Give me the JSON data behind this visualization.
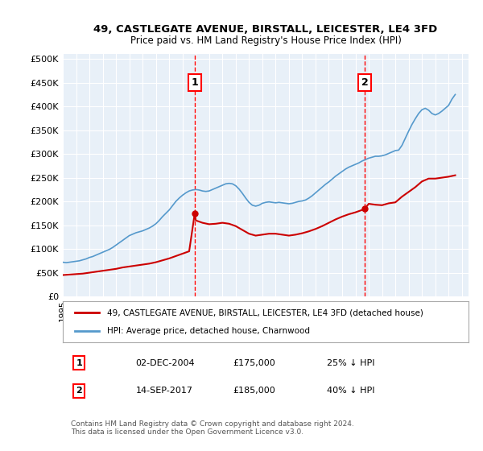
{
  "title": "49, CASTLEGATE AVENUE, BIRSTALL, LEICESTER, LE4 3FD",
  "subtitle": "Price paid vs. HM Land Registry's House Price Index (HPI)",
  "ylabel_ticks": [
    "£0",
    "£50K",
    "£100K",
    "£150K",
    "£200K",
    "£250K",
    "£300K",
    "£350K",
    "£400K",
    "£450K",
    "£500K"
  ],
  "ytick_values": [
    0,
    50000,
    100000,
    150000,
    200000,
    250000,
    300000,
    350000,
    400000,
    450000,
    500000
  ],
  "ylim": [
    0,
    510000
  ],
  "xlim_start": 1995.0,
  "xlim_end": 2025.5,
  "background_color": "#dde8f0",
  "plot_background": "#e8f0f8",
  "red_line_color": "#cc0000",
  "blue_line_color": "#5599cc",
  "marker1_date": 2004.92,
  "marker1_label": "1",
  "marker1_price": 175000,
  "marker2_date": 2017.71,
  "marker2_label": "2",
  "marker2_price": 185000,
  "legend_line1": "49, CASTLEGATE AVENUE, BIRSTALL, LEICESTER, LE4 3FD (detached house)",
  "legend_line2": "HPI: Average price, detached house, Charnwood",
  "table_row1": [
    "1",
    "02-DEC-2004",
    "£175,000",
    "25% ↓ HPI"
  ],
  "table_row2": [
    "2",
    "14-SEP-2017",
    "£185,000",
    "40% ↓ HPI"
  ],
  "footer": "Contains HM Land Registry data © Crown copyright and database right 2024.\nThis data is licensed under the Open Government Licence v3.0.",
  "hpi_x": [
    1995.0,
    1995.25,
    1995.5,
    1995.75,
    1996.0,
    1996.25,
    1996.5,
    1996.75,
    1997.0,
    1997.25,
    1997.5,
    1997.75,
    1998.0,
    1998.25,
    1998.5,
    1998.75,
    1999.0,
    1999.25,
    1999.5,
    1999.75,
    2000.0,
    2000.25,
    2000.5,
    2000.75,
    2001.0,
    2001.25,
    2001.5,
    2001.75,
    2002.0,
    2002.25,
    2002.5,
    2002.75,
    2003.0,
    2003.25,
    2003.5,
    2003.75,
    2004.0,
    2004.25,
    2004.5,
    2004.75,
    2005.0,
    2005.25,
    2005.5,
    2005.75,
    2006.0,
    2006.25,
    2006.5,
    2006.75,
    2007.0,
    2007.25,
    2007.5,
    2007.75,
    2008.0,
    2008.25,
    2008.5,
    2008.75,
    2009.0,
    2009.25,
    2009.5,
    2009.75,
    2010.0,
    2010.25,
    2010.5,
    2010.75,
    2011.0,
    2011.25,
    2011.5,
    2011.75,
    2012.0,
    2012.25,
    2012.5,
    2012.75,
    2013.0,
    2013.25,
    2013.5,
    2013.75,
    2014.0,
    2014.25,
    2014.5,
    2014.75,
    2015.0,
    2015.25,
    2015.5,
    2015.75,
    2016.0,
    2016.25,
    2016.5,
    2016.75,
    2017.0,
    2017.25,
    2017.5,
    2017.75,
    2018.0,
    2018.25,
    2018.5,
    2018.75,
    2019.0,
    2019.25,
    2019.5,
    2019.75,
    2020.0,
    2020.25,
    2020.5,
    2020.75,
    2021.0,
    2021.25,
    2021.5,
    2021.75,
    2022.0,
    2022.25,
    2022.5,
    2022.75,
    2023.0,
    2023.25,
    2023.5,
    2023.75,
    2024.0,
    2024.25,
    2024.5
  ],
  "hpi_y": [
    72000,
    71000,
    72000,
    73000,
    74000,
    75000,
    77000,
    79000,
    82000,
    84000,
    87000,
    90000,
    93000,
    96000,
    99000,
    103000,
    108000,
    113000,
    118000,
    123000,
    128000,
    131000,
    134000,
    136000,
    138000,
    141000,
    144000,
    148000,
    153000,
    160000,
    168000,
    175000,
    182000,
    191000,
    200000,
    207000,
    213000,
    218000,
    222000,
    224000,
    225000,
    224000,
    222000,
    221000,
    222000,
    225000,
    228000,
    231000,
    234000,
    237000,
    238000,
    237000,
    233000,
    226000,
    217000,
    207000,
    198000,
    192000,
    190000,
    192000,
    196000,
    198000,
    199000,
    198000,
    197000,
    198000,
    197000,
    196000,
    195000,
    196000,
    198000,
    200000,
    201000,
    203000,
    207000,
    212000,
    218000,
    224000,
    230000,
    236000,
    241000,
    247000,
    253000,
    258000,
    263000,
    268000,
    272000,
    275000,
    278000,
    281000,
    285000,
    288000,
    291000,
    293000,
    295000,
    295000,
    296000,
    298000,
    301000,
    304000,
    307000,
    308000,
    318000,
    333000,
    348000,
    362000,
    374000,
    385000,
    393000,
    396000,
    392000,
    385000,
    382000,
    385000,
    390000,
    396000,
    402000,
    415000,
    425000
  ],
  "red_x": [
    1995.0,
    1995.5,
    1996.0,
    1996.5,
    1997.0,
    1997.5,
    1998.0,
    1998.5,
    1999.0,
    1999.5,
    2000.0,
    2000.5,
    2001.0,
    2001.5,
    2002.0,
    2002.5,
    2003.0,
    2003.5,
    2004.0,
    2004.5,
    2004.92,
    2005.0,
    2005.5,
    2006.0,
    2006.5,
    2007.0,
    2007.5,
    2008.0,
    2008.5,
    2009.0,
    2009.5,
    2010.0,
    2010.5,
    2011.0,
    2011.5,
    2012.0,
    2012.5,
    2013.0,
    2013.5,
    2014.0,
    2014.5,
    2015.0,
    2015.5,
    2016.0,
    2016.5,
    2017.0,
    2017.5,
    2017.71,
    2018.0,
    2018.5,
    2019.0,
    2019.5,
    2020.0,
    2020.5,
    2021.0,
    2021.5,
    2022.0,
    2022.5,
    2023.0,
    2023.5,
    2024.0,
    2024.5
  ],
  "red_y": [
    45000,
    46000,
    47000,
    48000,
    50000,
    52000,
    54000,
    56000,
    58000,
    61000,
    63000,
    65000,
    67000,
    69000,
    72000,
    76000,
    80000,
    85000,
    90000,
    95000,
    175000,
    160000,
    155000,
    152000,
    153000,
    155000,
    153000,
    148000,
    140000,
    132000,
    128000,
    130000,
    132000,
    132000,
    130000,
    128000,
    130000,
    133000,
    137000,
    142000,
    148000,
    155000,
    162000,
    168000,
    173000,
    177000,
    182000,
    185000,
    195000,
    193000,
    192000,
    196000,
    198000,
    210000,
    220000,
    230000,
    242000,
    248000,
    248000,
    250000,
    252000,
    255000
  ]
}
